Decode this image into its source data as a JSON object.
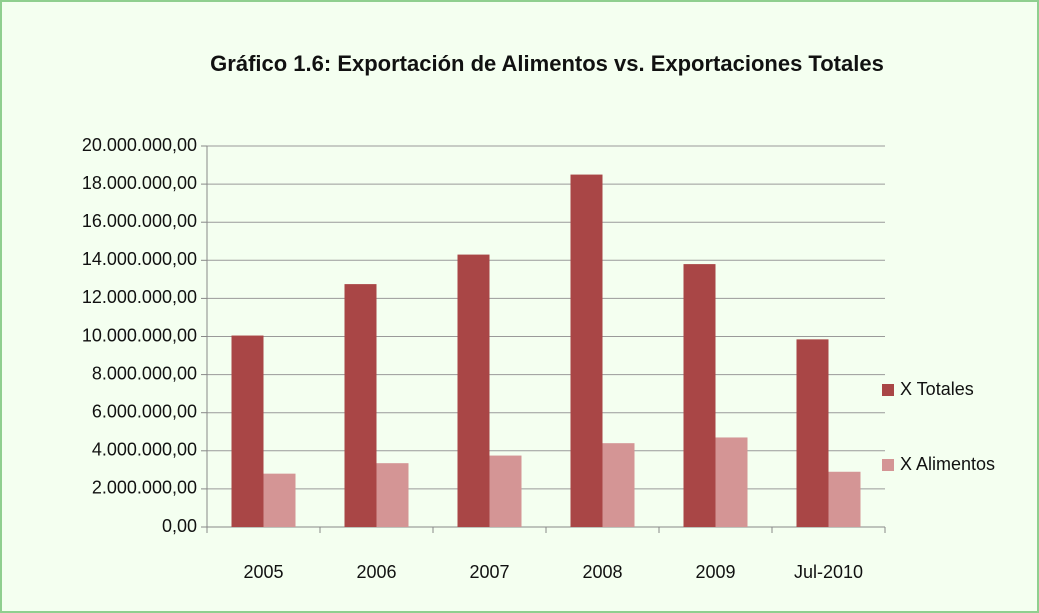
{
  "chart_data": {
    "type": "bar",
    "title": "Gráfico 1.6: Exportación de Alimentos vs. Exportaciones Totales",
    "categories": [
      "2005",
      "2006",
      "2007",
      "2008",
      "2009",
      "Jul-2010"
    ],
    "series": [
      {
        "name": "X Totales",
        "color": "#a94646",
        "values": [
          10050000,
          12750000,
          14300000,
          18500000,
          13800000,
          9850000
        ]
      },
      {
        "name": "X Alimentos",
        "color": "#d49595",
        "values": [
          2800000,
          3350000,
          3750000,
          4400000,
          4700000,
          2900000
        ]
      }
    ],
    "ylim": [
      0,
      20000000
    ],
    "yticks": [
      {
        "value": 0,
        "label": "0,00"
      },
      {
        "value": 2000000,
        "label": "2.000.000,00"
      },
      {
        "value": 4000000,
        "label": "4.000.000,00"
      },
      {
        "value": 6000000,
        "label": "6.000.000,00"
      },
      {
        "value": 8000000,
        "label": "8.000.000,00"
      },
      {
        "value": 10000000,
        "label": "10.000.000,00"
      },
      {
        "value": 12000000,
        "label": "12.000.000,00"
      },
      {
        "value": 14000000,
        "label": "14.000.000,00"
      },
      {
        "value": 16000000,
        "label": "16.000.000,00"
      },
      {
        "value": 18000000,
        "label": "18.000.000,00"
      },
      {
        "value": 20000000,
        "label": "20.000.000,00"
      }
    ],
    "grid": true,
    "legend": "right"
  }
}
